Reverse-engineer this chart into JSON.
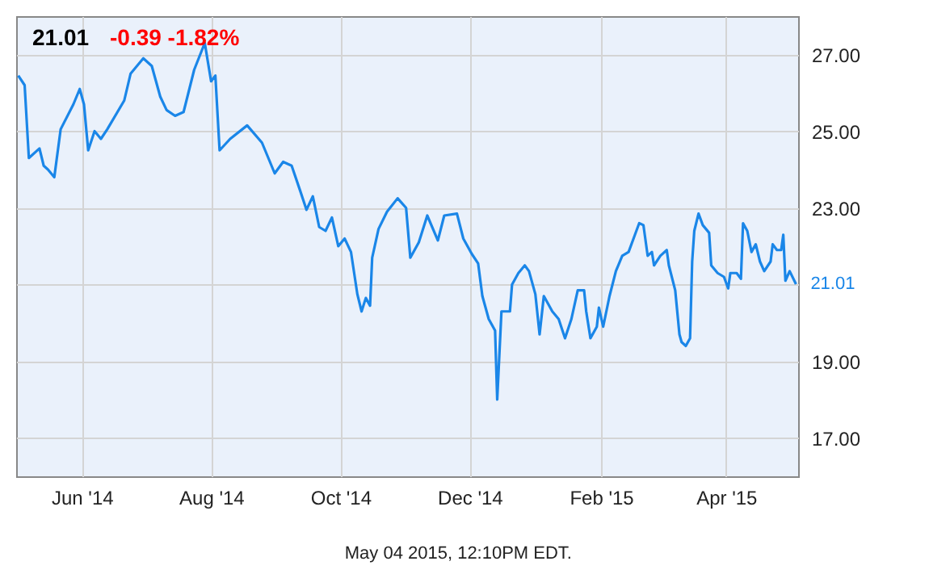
{
  "chart_data": {
    "type": "line",
    "title": "21.01",
    "subtitle": "-0.39  -1.82%",
    "xlim": [
      "2014-05-01",
      "2015-05-05"
    ],
    "xticks": [
      {
        "value": "2014-06-01",
        "label": "Jun '14"
      },
      {
        "value": "2014-08-01",
        "label": "Aug '14"
      },
      {
        "value": "2014-10-01",
        "label": "Oct '14"
      },
      {
        "value": "2014-12-01",
        "label": "Dec '14"
      },
      {
        "value": "2015-02-01",
        "label": "Feb '15"
      },
      {
        "value": "2015-04-01",
        "label": "Apr '15"
      }
    ],
    "ylim": [
      16,
      28
    ],
    "yticks": [
      {
        "value": 17,
        "label": "17.00"
      },
      {
        "value": 19,
        "label": "19.00"
      },
      {
        "value": 21,
        "label": null
      },
      {
        "value": 23,
        "label": "23.00"
      },
      {
        "value": 25,
        "label": "25.00"
      },
      {
        "value": 27,
        "label": "27.00"
      }
    ],
    "grid": true,
    "marker": "none",
    "line_style": "solid",
    "series": [
      {
        "color": "#1a86e8",
        "x": [
          "2014-05-02",
          "2014-05-05",
          "2014-05-07",
          "2014-05-12",
          "2014-05-14",
          "2014-05-16",
          "2014-05-19",
          "2014-05-22",
          "2014-05-28",
          "2014-05-31",
          "2014-06-02",
          "2014-06-04",
          "2014-06-07",
          "2014-06-10",
          "2014-06-13",
          "2014-06-21",
          "2014-06-24",
          "2014-06-30",
          "2014-07-04",
          "2014-07-08",
          "2014-07-11",
          "2014-07-15",
          "2014-07-19",
          "2014-07-24",
          "2014-07-29",
          "2014-08-01",
          "2014-08-03",
          "2014-08-05",
          "2014-08-10",
          "2014-08-18",
          "2014-08-25",
          "2014-08-31",
          "2014-09-04",
          "2014-09-08",
          "2014-09-12",
          "2014-09-15",
          "2014-09-18",
          "2014-09-21",
          "2014-09-24",
          "2014-09-27",
          "2014-09-30",
          "2014-10-03",
          "2014-10-06",
          "2014-10-09",
          "2014-10-11",
          "2014-10-13",
          "2014-10-15",
          "2014-10-16",
          "2014-10-19",
          "2014-10-23",
          "2014-10-28",
          "2014-11-01",
          "2014-11-03",
          "2014-11-07",
          "2014-11-11",
          "2014-11-16",
          "2014-11-19",
          "2014-11-25",
          "2014-11-28",
          "2014-12-02",
          "2014-12-05",
          "2014-12-07",
          "2014-12-10",
          "2014-12-13",
          "2014-12-14",
          "2014-12-16",
          "2014-12-20",
          "2014-12-21",
          "2014-12-24",
          "2014-12-27",
          "2014-12-29",
          "2015-01-01",
          "2015-01-03",
          "2015-01-05",
          "2015-01-09",
          "2015-01-12",
          "2015-01-15",
          "2015-01-18",
          "2015-01-21",
          "2015-01-24",
          "2015-01-25",
          "2015-01-27",
          "2015-01-30",
          "2015-01-31",
          "2015-02-02",
          "2015-02-05",
          "2015-02-08",
          "2015-02-11",
          "2015-02-14",
          "2015-02-17",
          "2015-02-19",
          "2015-02-21",
          "2015-02-23",
          "2015-02-25",
          "2015-02-26",
          "2015-03-01",
          "2015-03-04",
          "2015-03-05",
          "2015-03-08",
          "2015-03-10",
          "2015-03-11",
          "2015-03-13",
          "2015-03-15",
          "2015-03-16",
          "2015-03-17",
          "2015-03-19",
          "2015-03-21",
          "2015-03-24",
          "2015-03-25",
          "2015-03-28",
          "2015-03-31",
          "2015-04-02",
          "2015-04-03",
          "2015-04-06",
          "2015-04-08",
          "2015-04-09",
          "2015-04-11",
          "2015-04-13",
          "2015-04-15",
          "2015-04-17",
          "2015-04-19",
          "2015-04-22",
          "2015-04-23",
          "2015-04-25",
          "2015-04-27",
          "2015-04-28",
          "2015-04-29",
          "2015-05-01",
          "2015-05-04"
        ],
        "values": [
          26.45,
          26.2,
          24.3,
          24.55,
          24.1,
          24.0,
          23.8,
          25.05,
          25.7,
          26.1,
          25.7,
          24.5,
          25.0,
          24.8,
          25.05,
          25.8,
          26.5,
          26.9,
          26.7,
          25.9,
          25.55,
          25.4,
          25.5,
          26.6,
          27.3,
          26.3,
          26.45,
          24.5,
          24.8,
          25.15,
          24.7,
          23.9,
          24.2,
          24.1,
          23.45,
          22.95,
          23.3,
          22.5,
          22.4,
          22.75,
          22.0,
          22.2,
          21.85,
          20.75,
          20.3,
          20.65,
          20.45,
          21.7,
          22.45,
          22.9,
          23.25,
          23.0,
          21.7,
          22.1,
          22.8,
          22.15,
          22.8,
          22.85,
          22.2,
          21.8,
          21.55,
          20.7,
          20.1,
          19.8,
          18.0,
          20.3,
          20.3,
          21.0,
          21.3,
          21.5,
          21.35,
          20.75,
          19.7,
          20.7,
          20.3,
          20.1,
          19.6,
          20.1,
          20.85,
          20.85,
          20.3,
          19.6,
          19.9,
          20.4,
          19.9,
          20.7,
          21.35,
          21.75,
          21.85,
          22.3,
          22.6,
          22.55,
          21.75,
          21.85,
          21.5,
          21.75,
          21.9,
          21.5,
          20.85,
          19.7,
          19.5,
          19.4,
          19.6,
          21.6,
          22.4,
          22.85,
          22.55,
          22.35,
          21.5,
          21.3,
          21.2,
          20.9,
          21.3,
          21.3,
          21.15,
          22.6,
          22.4,
          21.85,
          22.05,
          21.6,
          21.35,
          21.6,
          22.05,
          21.9,
          21.9,
          22.3,
          21.1,
          21.35,
          21.01
        ]
      }
    ],
    "annotations": [
      {
        "text": "21.01",
        "x": "2015-05-04",
        "y": 21.01
      },
      "May 04 2015, 12:10PM EDT."
    ]
  }
}
